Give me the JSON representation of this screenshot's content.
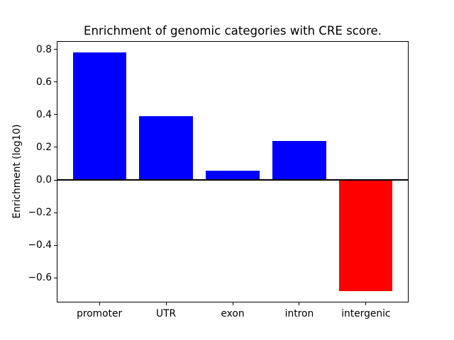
{
  "chart_data": {
    "type": "bar",
    "title": "Enrichment of genomic categories with CRE score.",
    "ylabel": "Enrichment (log10)",
    "xlabel": "",
    "categories": [
      "promoter",
      "UTR",
      "exon",
      "intron",
      "intergenic"
    ],
    "values": [
      0.78,
      0.39,
      0.055,
      0.24,
      -0.68
    ],
    "bar_colors": [
      "#0000ff",
      "#0000ff",
      "#0000ff",
      "#0000ff",
      "#ff0000"
    ],
    "positive_color": "#0000ff",
    "negative_color": "#ff0000",
    "ylim": [
      -0.75,
      0.85
    ],
    "yticks": [
      0.8,
      0.6,
      0.4,
      0.2,
      0.0,
      -0.2,
      -0.4,
      -0.6
    ],
    "ytick_labels": [
      "0.8",
      "0.6",
      "0.4",
      "0.2",
      "0.0",
      "−0.2",
      "−0.4",
      "−0.6"
    ],
    "grid": false,
    "legend": null,
    "zero_line": {
      "value": 0,
      "color": "#000000"
    },
    "axis_color": "#000000",
    "text_color": "#000000",
    "background_color": "#ffffff"
  }
}
